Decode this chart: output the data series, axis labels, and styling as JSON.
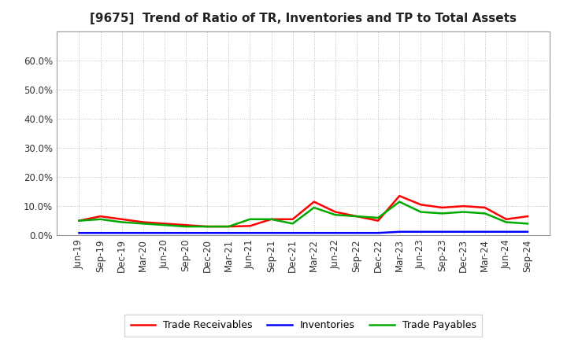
{
  "title": "[9675]  Trend of Ratio of TR, Inventories and TP to Total Assets",
  "x_labels": [
    "Jun-19",
    "Sep-19",
    "Dec-19",
    "Mar-20",
    "Jun-20",
    "Sep-20",
    "Dec-20",
    "Mar-21",
    "Jun-21",
    "Sep-21",
    "Dec-21",
    "Mar-22",
    "Jun-22",
    "Sep-22",
    "Dec-22",
    "Mar-23",
    "Jun-23",
    "Sep-23",
    "Dec-23",
    "Mar-24",
    "Jun-24",
    "Sep-24"
  ],
  "trade_receivables": [
    5.0,
    6.5,
    5.5,
    4.5,
    4.0,
    3.5,
    3.0,
    3.0,
    3.2,
    5.5,
    5.5,
    11.5,
    8.0,
    6.5,
    5.0,
    13.5,
    10.5,
    9.5,
    10.0,
    9.5,
    5.5,
    6.5
  ],
  "inventories": [
    0.8,
    0.8,
    0.8,
    0.8,
    0.8,
    0.8,
    0.8,
    0.8,
    0.8,
    0.8,
    0.8,
    0.8,
    0.8,
    0.8,
    0.8,
    1.2,
    1.2,
    1.2,
    1.2,
    1.2,
    1.2,
    1.2
  ],
  "trade_payables": [
    5.0,
    5.5,
    4.5,
    4.0,
    3.5,
    3.0,
    3.0,
    3.0,
    5.5,
    5.5,
    4.0,
    9.5,
    7.0,
    6.5,
    6.0,
    11.5,
    8.0,
    7.5,
    8.0,
    7.5,
    4.5,
    4.0
  ],
  "tr_color": "#ff0000",
  "inv_color": "#0000ff",
  "tp_color": "#00aa00",
  "bg_color": "#ffffff",
  "plot_bg_color": "#ffffff",
  "ylim": [
    0,
    70
  ],
  "yticks": [
    0,
    10,
    20,
    30,
    40,
    50,
    60
  ],
  "ytick_labels": [
    "0.0%",
    "10.0%",
    "20.0%",
    "30.0%",
    "40.0%",
    "50.0%",
    "60.0%"
  ],
  "legend_tr": "Trade Receivables",
  "legend_inv": "Inventories",
  "legend_tp": "Trade Payables",
  "line_width": 1.8,
  "title_fontsize": 11,
  "tick_fontsize": 8.5,
  "legend_fontsize": 9
}
